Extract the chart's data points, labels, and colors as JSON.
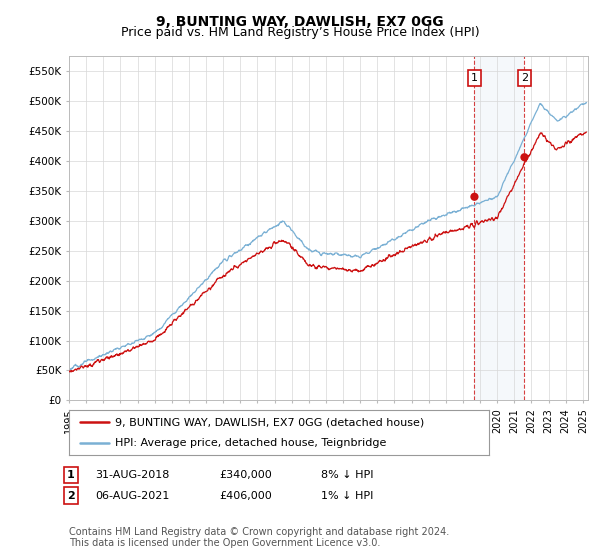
{
  "title": "9, BUNTING WAY, DAWLISH, EX7 0GG",
  "subtitle": "Price paid vs. HM Land Registry’s House Price Index (HPI)",
  "ylim": [
    0,
    575000
  ],
  "yticks": [
    0,
    50000,
    100000,
    150000,
    200000,
    250000,
    300000,
    350000,
    400000,
    450000,
    500000,
    550000
  ],
  "ytick_labels": [
    "£0",
    "£50K",
    "£100K",
    "£150K",
    "£200K",
    "£250K",
    "£300K",
    "£350K",
    "£400K",
    "£450K",
    "£500K",
    "£550K"
  ],
  "hpi_color": "#7ab0d4",
  "price_color": "#cc1111",
  "sale1_date": 2018.67,
  "sale1_price": 340000,
  "sale2_date": 2021.59,
  "sale2_price": 406000,
  "legend_line1": "9, BUNTING WAY, DAWLISH, EX7 0GG (detached house)",
  "legend_line2": "HPI: Average price, detached house, Teignbridge",
  "footnote": "Contains HM Land Registry data © Crown copyright and database right 2024.\nThis data is licensed under the Open Government Licence v3.0.",
  "bg_color": "#ffffff",
  "grid_color": "#d8d8d8",
  "shade_color": "#deeaf4",
  "title_fontsize": 10,
  "subtitle_fontsize": 9,
  "tick_fontsize": 7.5,
  "legend_fontsize": 8,
  "annotation_fontsize": 8,
  "footnote_fontsize": 7
}
